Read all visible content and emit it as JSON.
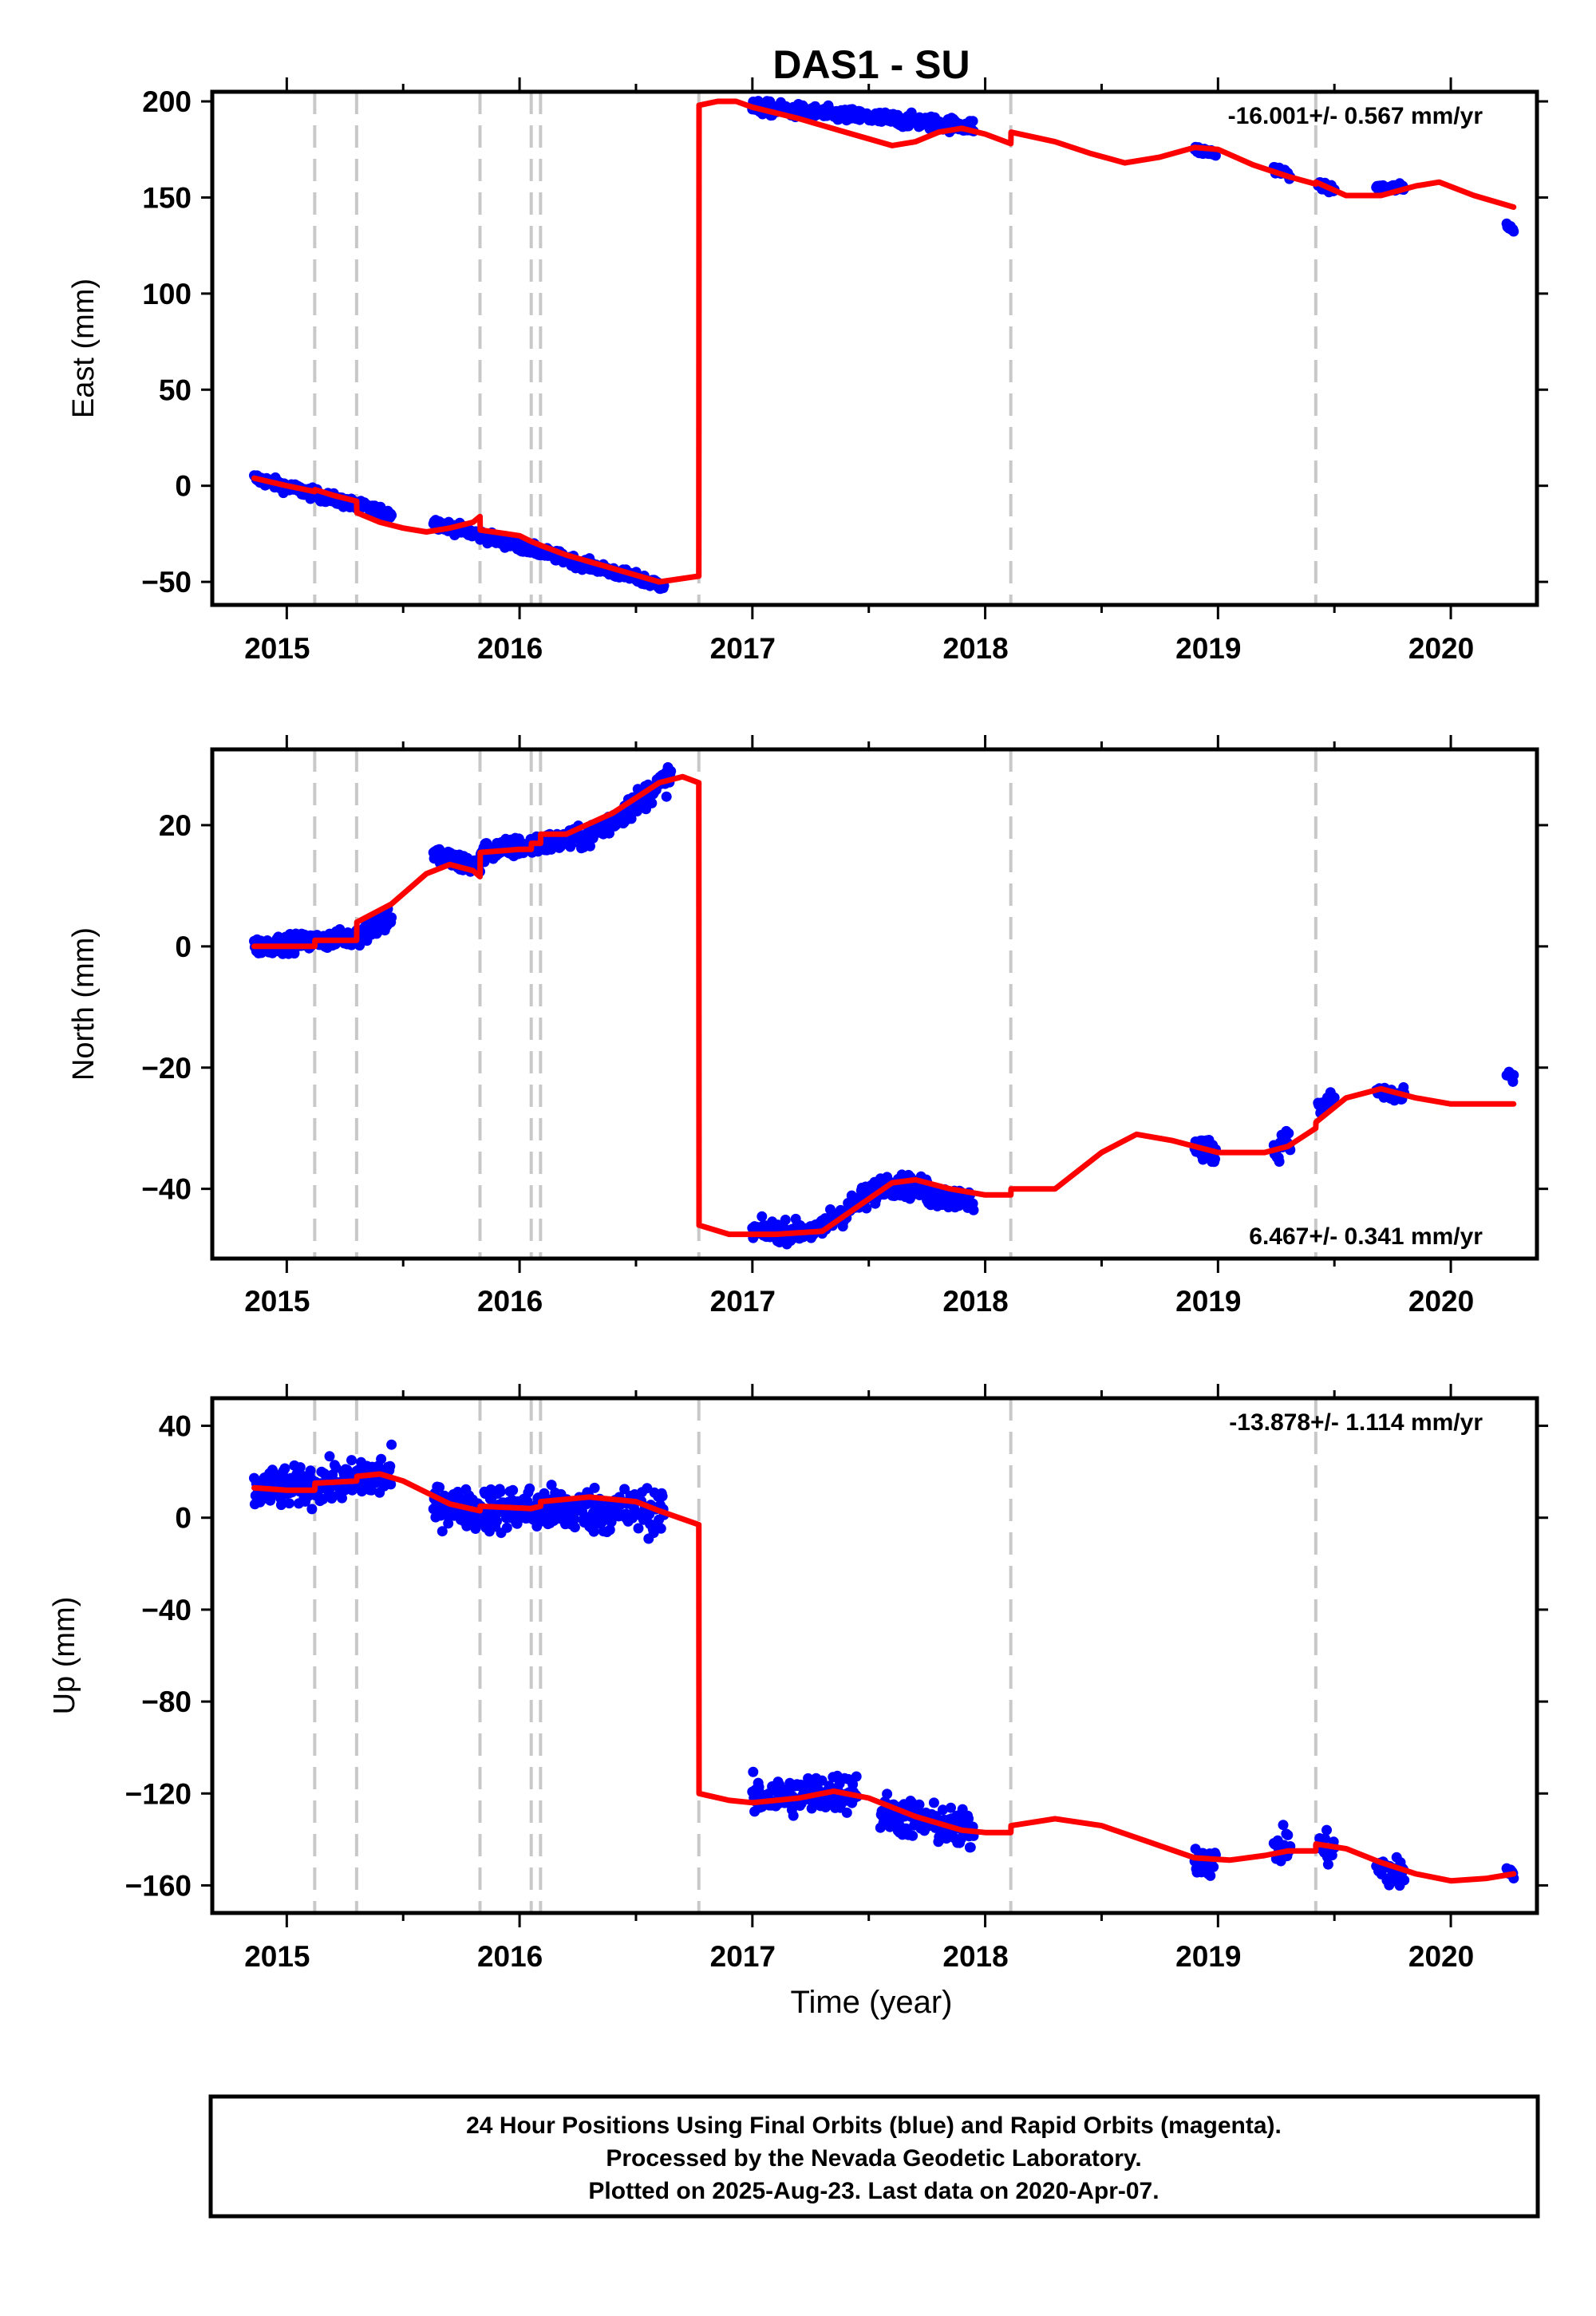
{
  "chart_data": {
    "type": "scatter",
    "title": "DAS1 - SU",
    "xlabel": "Time (year)",
    "x_ticks": [
      2015,
      2016,
      2017,
      2018,
      2019,
      2020
    ],
    "xlim": [
      2014.68,
      2020.37
    ],
    "event_lines": [
      2015.12,
      2015.3,
      2015.83,
      2016.05,
      2016.09,
      2016.77,
      2018.11,
      2019.42
    ],
    "colors": {
      "points": "#0000ff",
      "fit": "#ff0000",
      "event_lines": "#c8c8c8"
    },
    "panels": [
      {
        "ylabel": "East (mm)",
        "ylim": [
          -62,
          205
        ],
        "y_ticks": [
          -50,
          0,
          50,
          100,
          150,
          200
        ],
        "rate_label": "-16.001+/- 0.567 mm/yr",
        "rate_position": "top-right",
        "data_windows": [
          {
            "start": 2014.86,
            "end": 2015.45,
            "v0": 4,
            "v1": -15,
            "noise": 2
          },
          {
            "start": 2015.63,
            "end": 2016.62,
            "v0": -19,
            "v1": -52,
            "noise": 2
          },
          {
            "start": 2017.0,
            "end": 2017.95,
            "v0": 197,
            "v1": 187,
            "noise": 2.5
          },
          {
            "start": 2018.9,
            "end": 2018.99,
            "v0": 175,
            "v1": 173,
            "noise": 1.5
          },
          {
            "start": 2019.24,
            "end": 2019.31,
            "v0": 165,
            "v1": 162,
            "noise": 1.5
          },
          {
            "start": 2019.43,
            "end": 2019.5,
            "v0": 156,
            "v1": 154,
            "noise": 1.5
          },
          {
            "start": 2019.68,
            "end": 2019.8,
            "v0": 155,
            "v1": 155,
            "noise": 1.5
          },
          {
            "start": 2020.24,
            "end": 2020.27,
            "v0": 136,
            "v1": 133,
            "noise": 1
          }
        ],
        "fit_curve": {
          "x": [
            2014.86,
            2015.0,
            2015.12,
            2015.121,
            2015.2,
            2015.3,
            2015.301,
            2015.4,
            2015.5,
            2015.6,
            2015.7,
            2015.8,
            2015.83,
            2015.831,
            2016.0,
            2016.05,
            2016.09,
            2016.2,
            2016.4,
            2016.6,
            2016.77,
            2016.771,
            2016.85,
            2016.93,
            2017.0,
            2017.2,
            2017.4,
            2017.6,
            2017.7,
            2017.8,
            2017.9,
            2018.0,
            2018.11,
            2018.111,
            2018.3,
            2018.45,
            2018.6,
            2018.75,
            2018.9,
            2019.0,
            2019.15,
            2019.3,
            2019.42,
            2019.421,
            2019.55,
            2019.7,
            2019.85,
            2019.95,
            2020.1,
            2020.27
          ],
          "y": [
            4,
            0,
            -3,
            -2,
            -5,
            -8,
            -14,
            -19,
            -22,
            -24,
            -22,
            -19,
            -16,
            -23,
            -26,
            -29,
            -31,
            -36,
            -43,
            -50,
            -47,
            198,
            200,
            200,
            197,
            191,
            184,
            177,
            179,
            184,
            186,
            183,
            178,
            184,
            179,
            173,
            168,
            171,
            176,
            175,
            167,
            161,
            157,
            158,
            151,
            151,
            156,
            158,
            151,
            145
          ]
        }
      },
      {
        "ylabel": "North (mm)",
        "ylim": [
          -51.5,
          32.5
        ],
        "y_ticks": [
          -40,
          -20,
          0,
          20
        ],
        "rate_label": "6.467+/- 0.341 mm/yr",
        "rate_position": "bottom-right",
        "data_windows": [
          {
            "start": 2014.86,
            "end": 2015.3,
            "v0": 0,
            "v1": 1.5,
            "noise": 1
          },
          {
            "start": 2015.3,
            "end": 2015.45,
            "v0": 2,
            "v1": 5,
            "noise": 1.5
          },
          {
            "start": 2015.63,
            "end": 2015.83,
            "v0": 15,
            "v1": 13,
            "noise": 1.2
          },
          {
            "start": 2015.83,
            "end": 2016.3,
            "v0": 15.5,
            "v1": 18,
            "noise": 1.2
          },
          {
            "start": 2016.3,
            "end": 2016.65,
            "v0": 18,
            "v1": 28,
            "noise": 1.5
          },
          {
            "start": 2017.0,
            "end": 2017.3,
            "v0": -47,
            "v1": -47,
            "noise": 1.2
          },
          {
            "start": 2017.3,
            "end": 2017.55,
            "v0": -46,
            "v1": -40,
            "noise": 1.5
          },
          {
            "start": 2017.55,
            "end": 2017.75,
            "v0": -39,
            "v1": -40,
            "noise": 1.3
          },
          {
            "start": 2017.75,
            "end": 2017.95,
            "v0": -41,
            "v1": -42,
            "noise": 1.3
          },
          {
            "start": 2018.9,
            "end": 2018.99,
            "v0": -33,
            "v1": -34,
            "noise": 1.3
          },
          {
            "start": 2019.24,
            "end": 2019.31,
            "v0": -34,
            "v1": -31,
            "noise": 1.5
          },
          {
            "start": 2019.43,
            "end": 2019.5,
            "v0": -27,
            "v1": -25,
            "noise": 1
          },
          {
            "start": 2019.68,
            "end": 2019.8,
            "v0": -24,
            "v1": -25,
            "noise": 1
          },
          {
            "start": 2020.24,
            "end": 2020.27,
            "v0": -21,
            "v1": -22,
            "noise": 0.6
          }
        ],
        "fit_curve": {
          "x": [
            2014.86,
            2015.0,
            2015.12,
            2015.121,
            2015.3,
            2015.301,
            2015.45,
            2015.6,
            2015.7,
            2015.8,
            2015.83,
            2015.831,
            2016.0,
            2016.05,
            2016.051,
            2016.09,
            2016.091,
            2016.2,
            2016.4,
            2016.6,
            2016.7,
            2016.77,
            2016.771,
            2016.9,
            2017.1,
            2017.3,
            2017.45,
            2017.6,
            2017.7,
            2017.85,
            2018.0,
            2018.11,
            2018.111,
            2018.3,
            2018.5,
            2018.65,
            2018.8,
            2019.0,
            2019.2,
            2019.3,
            2019.42,
            2019.421,
            2019.55,
            2019.7,
            2019.85,
            2020.0,
            2020.27
          ],
          "y": [
            0,
            0,
            0,
            1,
            1,
            4,
            7,
            12,
            13.5,
            12.5,
            11.5,
            15.5,
            16,
            16,
            17,
            17,
            18.5,
            18.5,
            22,
            27,
            28,
            27,
            -46,
            -47.5,
            -47.5,
            -47,
            -43,
            -39,
            -38.5,
            -40,
            -41,
            -41,
            -40,
            -40,
            -34,
            -31,
            -32,
            -34,
            -34,
            -33,
            -30,
            -29,
            -25,
            -23.5,
            -25,
            -26,
            -26
          ]
        }
      },
      {
        "ylabel": "Up (mm)",
        "ylim": [
          -172,
          52
        ],
        "y_ticks": [
          -160,
          -120,
          -80,
          -40,
          0,
          40
        ],
        "rate_label": "-13.878+/- 1.114 mm/yr",
        "rate_position": "top-right",
        "data_windows": [
          {
            "start": 2014.86,
            "end": 2015.3,
            "v0": 12,
            "v1": 16,
            "noise": 6
          },
          {
            "start": 2015.3,
            "end": 2015.45,
            "v0": 18,
            "v1": 18,
            "noise": 7
          },
          {
            "start": 2015.63,
            "end": 2015.83,
            "v0": 6,
            "v1": 3,
            "noise": 6
          },
          {
            "start": 2015.83,
            "end": 2016.62,
            "v0": 4,
            "v1": 3,
            "noise": 7
          },
          {
            "start": 2017.0,
            "end": 2017.45,
            "v0": -122,
            "v1": -119,
            "noise": 6
          },
          {
            "start": 2017.55,
            "end": 2017.95,
            "v0": -128,
            "v1": -137,
            "noise": 6
          },
          {
            "start": 2018.9,
            "end": 2018.99,
            "v0": -148,
            "v1": -150,
            "noise": 5
          },
          {
            "start": 2019.24,
            "end": 2019.31,
            "v0": -144,
            "v1": -142,
            "noise": 5
          },
          {
            "start": 2019.43,
            "end": 2019.5,
            "v0": -143,
            "v1": -145,
            "noise": 5
          },
          {
            "start": 2019.68,
            "end": 2019.8,
            "v0": -152,
            "v1": -156,
            "noise": 5
          },
          {
            "start": 2020.24,
            "end": 2020.27,
            "v0": -152,
            "v1": -155,
            "noise": 3
          }
        ],
        "fit_curve": {
          "x": [
            2014.86,
            2015.0,
            2015.12,
            2015.121,
            2015.3,
            2015.301,
            2015.4,
            2015.5,
            2015.6,
            2015.7,
            2015.83,
            2015.831,
            2016.05,
            2016.09,
            2016.091,
            2016.3,
            2016.5,
            2016.6,
            2016.77,
            2016.771,
            2016.9,
            2017.0,
            2017.2,
            2017.35,
            2017.5,
            2017.7,
            2017.9,
            2018.0,
            2018.11,
            2018.111,
            2018.3,
            2018.5,
            2018.7,
            2018.9,
            2019.05,
            2019.2,
            2019.3,
            2019.42,
            2019.421,
            2019.55,
            2019.7,
            2019.85,
            2020.0,
            2020.15,
            2020.27
          ],
          "y": [
            13,
            12,
            12,
            15,
            16,
            18,
            19,
            16,
            11,
            6,
            3,
            5,
            4,
            5,
            7,
            9,
            7,
            3,
            -3,
            -120,
            -123,
            -124,
            -122,
            -119,
            -122,
            -130,
            -136,
            -137,
            -137,
            -134,
            -131,
            -134,
            -141,
            -148,
            -149,
            -147,
            -145,
            -145,
            -142,
            -144,
            -150,
            -155,
            -158,
            -157,
            -155
          ]
        }
      }
    ],
    "footer_lines": [
      "24 Hour Positions Using Final Orbits (blue) and Rapid Orbits (magenta).",
      "Processed by the Nevada Geodetic Laboratory.",
      "Plotted on 2025-Aug-23. Last data on 2020-Apr-07."
    ]
  }
}
